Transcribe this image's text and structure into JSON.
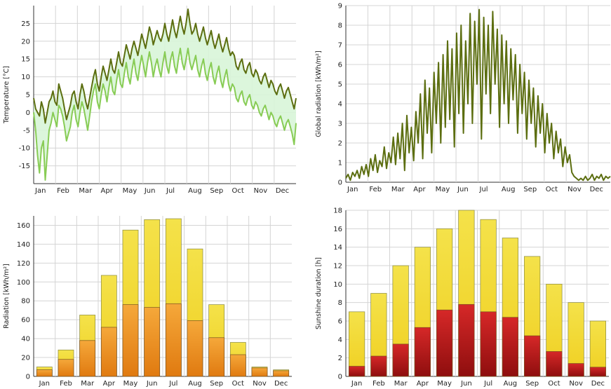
{
  "chart_data": [
    {
      "id": "temperature",
      "type": "line",
      "ylabel": "Temperature [°C]",
      "ylim": [
        -20,
        30
      ],
      "yticks": [
        -15,
        -10,
        -5,
        0,
        5,
        10,
        15,
        20,
        25
      ],
      "months": [
        "Jan",
        "Feb",
        "Mar",
        "Apr",
        "May",
        "Jun",
        "Jul",
        "Aug",
        "Sep",
        "Oct",
        "Nov",
        "Dec"
      ],
      "grid": true,
      "fill_between": true,
      "colors": {
        "max": "#5c6e10",
        "min": "#88cc55",
        "fill": "#d8f5d8"
      },
      "series": [
        {
          "values": [
            4,
            1,
            0,
            -1,
            3,
            1,
            -3,
            0,
            3,
            4,
            6,
            3,
            2,
            8,
            6,
            4,
            1,
            -2,
            0,
            2,
            5,
            6,
            3,
            1,
            5,
            8,
            6,
            3,
            1,
            4,
            7,
            10,
            12,
            8,
            6,
            10,
            13,
            11,
            9,
            12,
            15,
            12,
            11,
            14,
            17,
            14,
            13,
            16,
            19,
            17,
            15,
            18,
            20,
            18,
            16,
            19,
            22,
            20,
            18,
            21,
            24,
            22,
            19,
            21,
            23,
            21,
            20,
            22,
            25,
            22,
            20,
            23,
            26,
            23,
            21,
            24,
            27,
            24,
            22,
            25,
            29,
            25,
            22,
            23,
            25,
            22,
            20,
            22,
            24,
            21,
            19,
            21,
            23,
            20,
            18,
            20,
            22,
            19,
            17,
            19,
            21,
            18,
            16,
            17,
            16,
            13,
            12,
            14,
            15,
            12,
            11,
            13,
            14,
            11,
            10,
            12,
            11,
            9,
            8,
            10,
            11,
            9,
            7,
            9,
            8,
            6,
            5,
            7,
            8,
            6,
            4,
            6,
            7,
            5,
            3,
            1,
            4
          ]
        },
        {
          "values": [
            0,
            -5,
            -12,
            -17,
            -10,
            -8,
            -19,
            -12,
            -5,
            -3,
            0,
            -2,
            -4,
            2,
            1,
            -1,
            -4,
            -8,
            -6,
            -4,
            0,
            2,
            -2,
            -4,
            0,
            3,
            1,
            -2,
            -5,
            -1,
            3,
            6,
            8,
            3,
            1,
            5,
            8,
            6,
            3,
            7,
            10,
            6,
            5,
            9,
            12,
            8,
            7,
            11,
            14,
            10,
            8,
            12,
            15,
            11,
            9,
            13,
            16,
            13,
            10,
            14,
            17,
            14,
            10,
            13,
            15,
            12,
            10,
            14,
            17,
            13,
            11,
            15,
            17,
            13,
            11,
            15,
            18,
            14,
            12,
            15,
            18,
            14,
            12,
            14,
            16,
            12,
            10,
            13,
            15,
            11,
            9,
            12,
            14,
            10,
            8,
            11,
            13,
            9,
            7,
            10,
            12,
            8,
            6,
            8,
            7,
            4,
            3,
            5,
            6,
            3,
            2,
            4,
            5,
            2,
            1,
            3,
            2,
            0,
            -1,
            1,
            2,
            0,
            -2,
            0,
            -1,
            -3,
            -4,
            -2,
            -1,
            -3,
            -5,
            -3,
            -2,
            -4,
            -6,
            -9,
            -3
          ]
        }
      ]
    },
    {
      "id": "radiation_daily",
      "type": "line",
      "ylabel": "Global radiation [kWh/m²]",
      "ylim": [
        0,
        9
      ],
      "yticks": [
        0,
        1,
        2,
        3,
        4,
        5,
        6,
        7,
        8,
        9
      ],
      "months": [
        "Jan",
        "Feb",
        "Mar",
        "Apr",
        "May",
        "Jun",
        "Jul",
        "Aug",
        "Sep",
        "Oct",
        "Nov",
        "Dec"
      ],
      "grid": true,
      "colors": {
        "line": "#5c6e10"
      },
      "series": [
        {
          "values": [
            0.2,
            0.4,
            0.1,
            0.5,
            0.3,
            0.6,
            0.2,
            0.8,
            0.4,
            0.9,
            0.3,
            1.2,
            0.6,
            1.4,
            0.5,
            1.1,
            0.8,
            1.8,
            0.7,
            1.5,
            1.0,
            2.3,
            0.9,
            2.5,
            1.2,
            3.0,
            0.6,
            3.4,
            1.5,
            2.8,
            1.1,
            3.6,
            2.0,
            4.5,
            1.2,
            5.2,
            2.5,
            4.8,
            1.5,
            5.6,
            3.0,
            6.1,
            2.0,
            6.5,
            2.8,
            7.2,
            3.2,
            6.8,
            1.8,
            7.6,
            3.5,
            8.0,
            2.5,
            7.2,
            4.0,
            8.6,
            3.0,
            8.2,
            5.0,
            8.8,
            2.2,
            8.4,
            4.5,
            8.0,
            3.5,
            8.7,
            5.0,
            7.8,
            2.8,
            7.5,
            4.0,
            7.2,
            3.0,
            6.8,
            4.2,
            6.5,
            2.5,
            6.0,
            3.5,
            5.6,
            2.2,
            5.2,
            3.0,
            4.8,
            1.8,
            4.4,
            2.5,
            4.0,
            1.5,
            3.5,
            2.0,
            3.0,
            1.2,
            2.6,
            1.5,
            2.2,
            0.8,
            1.8,
            1.0,
            1.4,
            0.5,
            0.3,
            0.2,
            0.1,
            0.2,
            0.1,
            0.3,
            0.1,
            0.2,
            0.4,
            0.1,
            0.3,
            0.2,
            0.4,
            0.1,
            0.3,
            0.2,
            0.3
          ]
        }
      ]
    },
    {
      "id": "radiation_monthly",
      "type": "bar",
      "stacked_overlay": true,
      "ylabel": "Radiation [kWh/m²]",
      "ylim": [
        0,
        170
      ],
      "yticks": [
        0,
        20,
        40,
        60,
        80,
        100,
        120,
        140,
        160
      ],
      "categories": [
        "Jan",
        "Feb",
        "Mar",
        "Apr",
        "May",
        "Jun",
        "Jul",
        "Aug",
        "Sep",
        "Oct",
        "Nov",
        "Dec"
      ],
      "grid": true,
      "colors": {
        "total": "#f0dc30",
        "part": "#f0a020"
      },
      "series": [
        {
          "values": [
            10,
            28,
            65,
            107,
            155,
            166,
            167,
            135,
            76,
            36,
            10,
            7
          ]
        },
        {
          "values": [
            7,
            18,
            38,
            52,
            76,
            73,
            77,
            59,
            41,
            23,
            9,
            6
          ]
        }
      ]
    },
    {
      "id": "sunshine",
      "type": "bar",
      "stacked_overlay": true,
      "ylabel": "Sunshine duration [h]",
      "ylim": [
        0,
        18
      ],
      "yticks": [
        0,
        2,
        4,
        6,
        8,
        10,
        12,
        14,
        16,
        18
      ],
      "categories": [
        "Jan",
        "Feb",
        "Mar",
        "Apr",
        "May",
        "Jun",
        "Jul",
        "Aug",
        "Sep",
        "Oct",
        "Nov",
        "Dec"
      ],
      "grid": true,
      "colors": {
        "total": "#f0dc30",
        "part": "#c42020"
      },
      "series": [
        {
          "values": [
            7,
            9,
            12,
            14,
            16,
            18,
            17,
            15,
            13,
            10,
            8,
            6
          ]
        },
        {
          "values": [
            1.1,
            2.2,
            3.5,
            5.3,
            7.2,
            7.8,
            7.0,
            6.4,
            4.4,
            2.7,
            1.4,
            1.0
          ]
        }
      ]
    }
  ]
}
